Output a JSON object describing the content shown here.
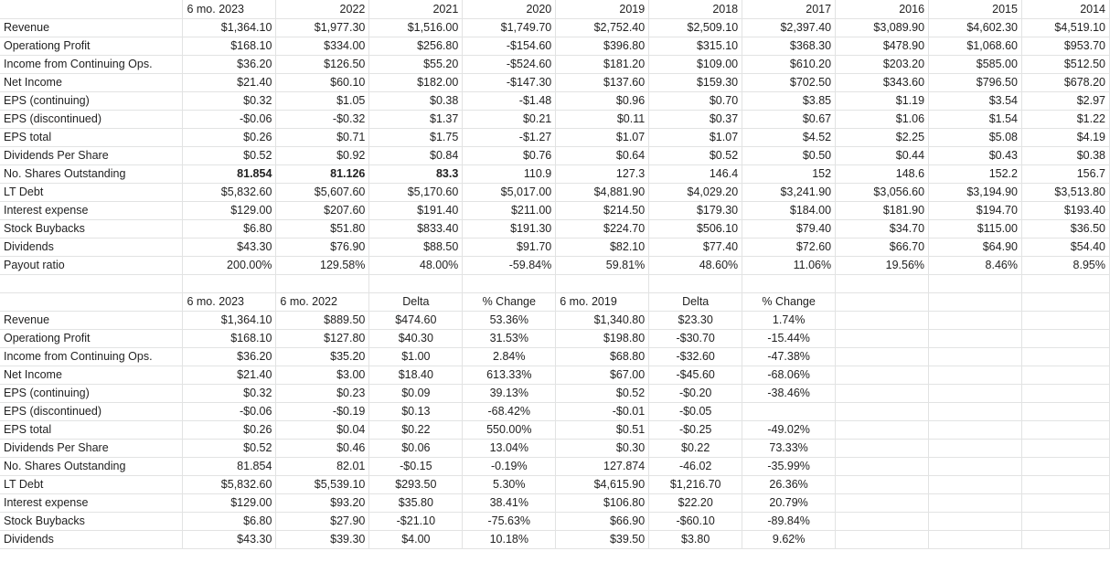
{
  "sheet1": {
    "header": [
      "",
      "6 mo. 2023",
      "2022",
      "2021",
      "2020",
      "2019",
      "2018",
      "2017",
      "2016",
      "2015",
      "2014"
    ],
    "rows": [
      [
        "Revenue",
        "$1,364.10",
        "$1,977.30",
        "$1,516.00",
        "$1,749.70",
        "$2,752.40",
        "$2,509.10",
        "$2,397.40",
        "$3,089.90",
        "$4,602.30",
        "$4,519.10"
      ],
      [
        "Operationg Profit",
        "$168.10",
        "$334.00",
        "$256.80",
        "-$154.60",
        "$396.80",
        "$315.10",
        "$368.30",
        "$478.90",
        "$1,068.60",
        "$953.70"
      ],
      [
        "Income from Continuing Ops.",
        "$36.20",
        "$126.50",
        "$55.20",
        "-$524.60",
        "$181.20",
        "$109.00",
        "$610.20",
        "$203.20",
        "$585.00",
        "$512.50"
      ],
      [
        "Net Income",
        "$21.40",
        "$60.10",
        "$182.00",
        "-$147.30",
        "$137.60",
        "$159.30",
        "$702.50",
        "$343.60",
        "$796.50",
        "$678.20"
      ],
      [
        "EPS (continuing)",
        "$0.32",
        "$1.05",
        "$0.38",
        "-$1.48",
        "$0.96",
        "$0.70",
        "$3.85",
        "$1.19",
        "$3.54",
        "$2.97"
      ],
      [
        "EPS (discontinued)",
        "-$0.06",
        "-$0.32",
        "$1.37",
        "$0.21",
        "$0.11",
        "$0.37",
        "$0.67",
        "$1.06",
        "$1.54",
        "$1.22"
      ],
      [
        "EPS total",
        "$0.26",
        "$0.71",
        "$1.75",
        "-$1.27",
        "$1.07",
        "$1.07",
        "$4.52",
        "$2.25",
        "$5.08",
        "$4.19"
      ],
      [
        "Dividends Per Share",
        "$0.52",
        "$0.92",
        "$0.84",
        "$0.76",
        "$0.64",
        "$0.52",
        "$0.50",
        "$0.44",
        "$0.43",
        "$0.38"
      ],
      [
        "No. Shares Outstanding",
        "81.854",
        "81.126",
        "83.3",
        "110.9",
        "127.3",
        "146.4",
        "152",
        "148.6",
        "152.2",
        "156.7"
      ],
      [
        "LT Debt",
        "$5,832.60",
        "$5,607.60",
        "$5,170.60",
        "$5,017.00",
        "$4,881.90",
        "$4,029.20",
        "$3,241.90",
        "$3,056.60",
        "$3,194.90",
        "$3,513.80"
      ],
      [
        "Interest expense",
        "$129.00",
        "$207.60",
        "$191.40",
        "$211.00",
        "$214.50",
        "$179.30",
        "$184.00",
        "$181.90",
        "$194.70",
        "$193.40"
      ],
      [
        "Stock Buybacks",
        "$6.80",
        "$51.80",
        "$833.40",
        "$191.30",
        "$224.70",
        "$506.10",
        "$79.40",
        "$34.70",
        "$115.00",
        "$36.50"
      ],
      [
        "Dividends",
        "$43.30",
        "$76.90",
        "$88.50",
        "$91.70",
        "$82.10",
        "$77.40",
        "$72.60",
        "$66.70",
        "$64.90",
        "$54.40"
      ],
      [
        "Payout ratio",
        "200.00%",
        "129.58%",
        "48.00%",
        "-59.84%",
        "59.81%",
        "48.60%",
        "11.06%",
        "19.56%",
        "8.46%",
        "8.95%"
      ]
    ]
  },
  "sheet2": {
    "header": [
      "",
      "6 mo. 2023",
      "6 mo. 2022",
      "Delta",
      "% Change",
      "6 mo. 2019",
      "Delta",
      "% Change",
      "",
      "",
      ""
    ],
    "rows": [
      [
        "Revenue",
        "$1,364.10",
        "$889.50",
        "$474.60",
        "53.36%",
        "$1,340.80",
        "$23.30",
        "1.74%",
        "",
        "",
        ""
      ],
      [
        "Operationg Profit",
        "$168.10",
        "$127.80",
        "$40.30",
        "31.53%",
        "$198.80",
        "-$30.70",
        "-15.44%",
        "",
        "",
        ""
      ],
      [
        "Income from Continuing Ops.",
        "$36.20",
        "$35.20",
        "$1.00",
        "2.84%",
        "$68.80",
        "-$32.60",
        "-47.38%",
        "",
        "",
        ""
      ],
      [
        "Net Income",
        "$21.40",
        "$3.00",
        "$18.40",
        "613.33%",
        "$67.00",
        "-$45.60",
        "-68.06%",
        "",
        "",
        ""
      ],
      [
        "EPS (continuing)",
        "$0.32",
        "$0.23",
        "$0.09",
        "39.13%",
        "$0.52",
        "-$0.20",
        "-38.46%",
        "",
        "",
        ""
      ],
      [
        "EPS (discontinued)",
        "-$0.06",
        "-$0.19",
        "$0.13",
        "-68.42%",
        "-$0.01",
        "-$0.05",
        "",
        "",
        "",
        ""
      ],
      [
        "EPS total",
        "$0.26",
        "$0.04",
        "$0.22",
        "550.00%",
        "$0.51",
        "-$0.25",
        "-49.02%",
        "",
        "",
        ""
      ],
      [
        "Dividends Per Share",
        "$0.52",
        "$0.46",
        "$0.06",
        "13.04%",
        "$0.30",
        "$0.22",
        "73.33%",
        "",
        "",
        ""
      ],
      [
        "No. Shares Outstanding",
        "81.854",
        "82.01",
        "-$0.15",
        "-0.19%",
        "127.874",
        "-46.02",
        "-35.99%",
        "",
        "",
        ""
      ],
      [
        "LT Debt",
        "$5,832.60",
        "$5,539.10",
        "$293.50",
        "5.30%",
        "$4,615.90",
        "$1,216.70",
        "26.36%",
        "",
        "",
        ""
      ],
      [
        "Interest expense",
        "$129.00",
        "$93.20",
        "$35.80",
        "38.41%",
        "$106.80",
        "$22.20",
        "20.79%",
        "",
        "",
        ""
      ],
      [
        "Stock Buybacks",
        "$6.80",
        "$27.90",
        "-$21.10",
        "-75.63%",
        "$66.90",
        "-$60.10",
        "-89.84%",
        "",
        "",
        ""
      ],
      [
        "Dividends",
        "$43.30",
        "$39.30",
        "$4.00",
        "10.18%",
        "$39.50",
        "$3.80",
        "9.62%",
        "",
        "",
        ""
      ]
    ]
  }
}
